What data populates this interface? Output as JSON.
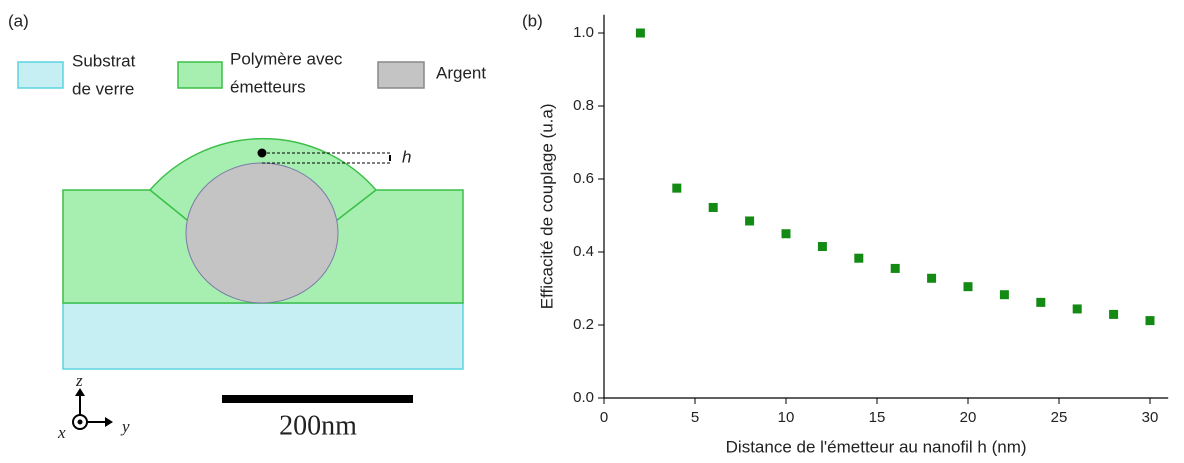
{
  "diagram": {
    "panel_label": "(a)",
    "legend": [
      {
        "lines": [
          "Substrat",
          "de verre"
        ]
      },
      {
        "lines": [
          "Polymère avec",
          "émetteurs"
        ]
      },
      {
        "lines": [
          "Argent"
        ]
      }
    ],
    "distance_label": "h",
    "axes": {
      "z": "z",
      "y": "y",
      "x": "x"
    },
    "scale_bar": "200nm"
  },
  "chart_data": {
    "type": "scatter",
    "panel_label": "(b)",
    "xlabel": "Distance de l'émetteur au nanofil h (nm)",
    "ylabel": "Efficacité de couplage (u.a)",
    "x": [
      2,
      4,
      6,
      8,
      10,
      12,
      14,
      16,
      18,
      20,
      22,
      24,
      26,
      28,
      30
    ],
    "values": [
      1.0,
      0.575,
      0.522,
      0.485,
      0.45,
      0.415,
      0.383,
      0.355,
      0.328,
      0.305,
      0.283,
      0.262,
      0.244,
      0.229,
      0.212
    ],
    "color": "#138a13",
    "xlim": [
      0,
      31
    ],
    "xticks": [
      0,
      5,
      10,
      15,
      20,
      25,
      30
    ],
    "ylim": [
      0,
      1.05
    ],
    "yticks": [
      {
        "value": 0,
        "label": "0.0"
      },
      0.2,
      0.4,
      0.6,
      0.8,
      {
        "value": 1,
        "label": "1.0"
      }
    ]
  }
}
